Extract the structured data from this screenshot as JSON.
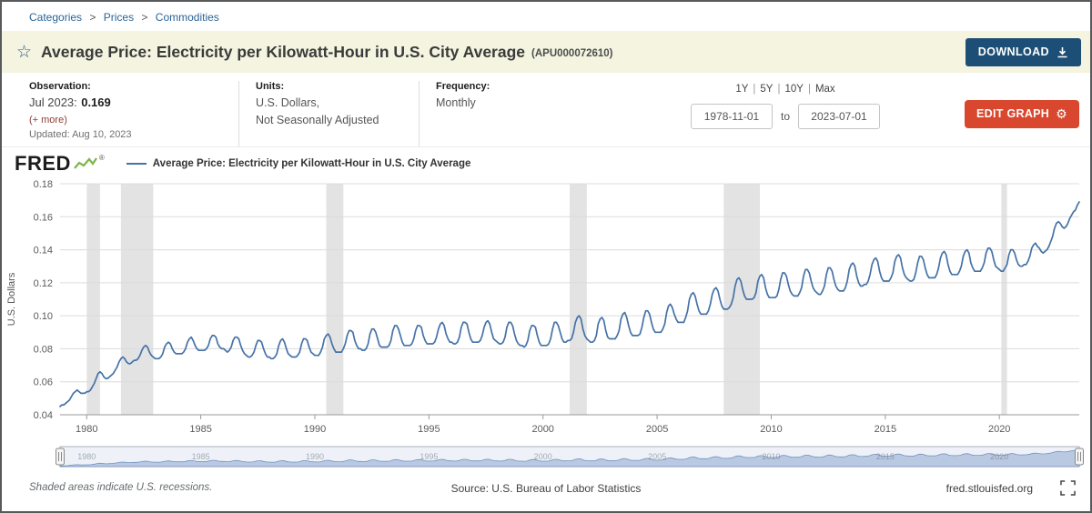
{
  "breadcrumb": {
    "items": [
      "Categories",
      "Prices",
      "Commodities"
    ],
    "separator": ">"
  },
  "title_bar": {
    "title": "Average Price: Electricity per Kilowatt-Hour in U.S. City Average",
    "series_id": "(APU000072610)",
    "download_label": "DOWNLOAD",
    "registered_mark": "®"
  },
  "icons": {
    "star": "☆",
    "gear": "⚙"
  },
  "info": {
    "observation": {
      "label": "Observation:",
      "date": "Jul 2023:",
      "value": "0.169",
      "more_link": "(+ more)",
      "updated": "Updated: Aug 10, 2023"
    },
    "units": {
      "label": "Units:",
      "line1": "U.S. Dollars,",
      "line2": "Not Seasonally Adjusted"
    },
    "frequency": {
      "label": "Frequency:",
      "value": "Monthly"
    },
    "range": {
      "presets": [
        "1Y",
        "5Y",
        "10Y",
        "Max"
      ],
      "preset_separator": "|",
      "start_date": "1978-11-01",
      "to_label": "to",
      "end_date": "2023-07-01",
      "edit_graph_label": "EDIT GRAPH"
    }
  },
  "chart_header": {
    "logo_text": "FRED",
    "legend_label": "Average Price: Electricity per Kilowatt-Hour in U.S. City Average"
  },
  "footer": {
    "recession_note": "Shaded areas indicate U.S. recessions.",
    "source": "Source: U.S. Bureau of Labor Statistics",
    "site": "fred.stlouisfed.org"
  },
  "colors": {
    "line": "#4572a7",
    "recession_band": "#e3e3e3",
    "gridline": "#dcdcdc",
    "axis_label": "#5a5a5a",
    "navigator_fill": "#b9c9e2",
    "navigator_stroke": "#7391bd",
    "download_button_bg": "#1d4f76",
    "edit_button_bg": "#d9472e",
    "title_bar_bg": "#f4f4e1"
  },
  "chart_data": {
    "type": "line",
    "title": "Average Price: Electricity per Kilowatt-Hour in U.S. City Average",
    "ylabel": "U.S. Dollars",
    "ylim": [
      0.04,
      0.18
    ],
    "yticks": [
      0.04,
      0.06,
      0.08,
      0.1,
      0.12,
      0.14,
      0.16,
      0.18
    ],
    "xticks": [
      1980,
      1985,
      1990,
      1995,
      2000,
      2005,
      2010,
      2015,
      2020
    ],
    "x_start": {
      "year": 1978,
      "month": 11
    },
    "x_end": {
      "year": 2023,
      "month": 7
    },
    "frequency": "Monthly",
    "grid": "horizontal-only",
    "legend_position": "top-left",
    "recessions": [
      [
        1980.0,
        1980.583
      ],
      [
        1981.5,
        1982.917
      ],
      [
        1990.5,
        1991.25
      ],
      [
        2001.167,
        2001.917
      ],
      [
        2007.917,
        2009.5
      ],
      [
        2020.083,
        2020.333
      ]
    ],
    "monthly_values": [
      0.045,
      0.046,
      0.046,
      0.047,
      0.048,
      0.049,
      0.051,
      0.053,
      0.054,
      0.055,
      0.054,
      0.053,
      0.053,
      0.053,
      0.054,
      0.054,
      0.055,
      0.057,
      0.059,
      0.062,
      0.065,
      0.066,
      0.065,
      0.063,
      0.062,
      0.062,
      0.063,
      0.064,
      0.065,
      0.067,
      0.069,
      0.072,
      0.074,
      0.075,
      0.074,
      0.072,
      0.071,
      0.071,
      0.072,
      0.073,
      0.073,
      0.074,
      0.076,
      0.079,
      0.081,
      0.082,
      0.081,
      0.078,
      0.076,
      0.075,
      0.074,
      0.074,
      0.074,
      0.075,
      0.077,
      0.081,
      0.083,
      0.084,
      0.083,
      0.08,
      0.078,
      0.077,
      0.077,
      0.077,
      0.077,
      0.078,
      0.08,
      0.084,
      0.086,
      0.087,
      0.085,
      0.082,
      0.08,
      0.079,
      0.079,
      0.079,
      0.079,
      0.08,
      0.082,
      0.086,
      0.088,
      0.088,
      0.087,
      0.083,
      0.081,
      0.08,
      0.08,
      0.079,
      0.078,
      0.079,
      0.081,
      0.085,
      0.087,
      0.087,
      0.086,
      0.082,
      0.079,
      0.077,
      0.076,
      0.075,
      0.075,
      0.076,
      0.078,
      0.082,
      0.085,
      0.085,
      0.084,
      0.08,
      0.077,
      0.075,
      0.075,
      0.074,
      0.074,
      0.075,
      0.077,
      0.082,
      0.085,
      0.086,
      0.084,
      0.08,
      0.077,
      0.076,
      0.075,
      0.075,
      0.075,
      0.076,
      0.078,
      0.083,
      0.086,
      0.086,
      0.085,
      0.081,
      0.078,
      0.077,
      0.076,
      0.076,
      0.076,
      0.078,
      0.081,
      0.086,
      0.088,
      0.089,
      0.087,
      0.083,
      0.08,
      0.078,
      0.078,
      0.078,
      0.078,
      0.08,
      0.083,
      0.088,
      0.091,
      0.091,
      0.09,
      0.085,
      0.082,
      0.08,
      0.08,
      0.079,
      0.079,
      0.08,
      0.083,
      0.089,
      0.092,
      0.092,
      0.09,
      0.086,
      0.082,
      0.081,
      0.081,
      0.081,
      0.081,
      0.082,
      0.085,
      0.091,
      0.094,
      0.094,
      0.092,
      0.088,
      0.084,
      0.082,
      0.082,
      0.082,
      0.082,
      0.083,
      0.086,
      0.091,
      0.094,
      0.094,
      0.093,
      0.088,
      0.085,
      0.083,
      0.083,
      0.083,
      0.083,
      0.084,
      0.087,
      0.092,
      0.095,
      0.096,
      0.094,
      0.089,
      0.086,
      0.084,
      0.084,
      0.083,
      0.083,
      0.084,
      0.087,
      0.093,
      0.096,
      0.096,
      0.095,
      0.09,
      0.086,
      0.084,
      0.084,
      0.084,
      0.084,
      0.085,
      0.088,
      0.093,
      0.096,
      0.097,
      0.095,
      0.09,
      0.086,
      0.085,
      0.084,
      0.083,
      0.083,
      0.084,
      0.087,
      0.093,
      0.096,
      0.096,
      0.094,
      0.089,
      0.085,
      0.083,
      0.082,
      0.082,
      0.081,
      0.082,
      0.085,
      0.091,
      0.094,
      0.094,
      0.093,
      0.088,
      0.084,
      0.082,
      0.082,
      0.082,
      0.082,
      0.083,
      0.086,
      0.092,
      0.096,
      0.096,
      0.094,
      0.09,
      0.086,
      0.084,
      0.084,
      0.085,
      0.085,
      0.086,
      0.09,
      0.096,
      0.099,
      0.1,
      0.098,
      0.092,
      0.088,
      0.086,
      0.085,
      0.084,
      0.084,
      0.085,
      0.088,
      0.095,
      0.098,
      0.099,
      0.097,
      0.091,
      0.087,
      0.086,
      0.086,
      0.086,
      0.086,
      0.088,
      0.091,
      0.098,
      0.101,
      0.102,
      0.099,
      0.094,
      0.09,
      0.088,
      0.088,
      0.088,
      0.088,
      0.089,
      0.093,
      0.099,
      0.103,
      0.103,
      0.101,
      0.096,
      0.092,
      0.09,
      0.09,
      0.09,
      0.09,
      0.092,
      0.095,
      0.102,
      0.106,
      0.107,
      0.105,
      0.101,
      0.098,
      0.096,
      0.096,
      0.096,
      0.096,
      0.099,
      0.103,
      0.11,
      0.113,
      0.114,
      0.112,
      0.107,
      0.103,
      0.101,
      0.101,
      0.101,
      0.101,
      0.103,
      0.107,
      0.113,
      0.116,
      0.117,
      0.115,
      0.11,
      0.106,
      0.104,
      0.104,
      0.104,
      0.105,
      0.107,
      0.111,
      0.118,
      0.122,
      0.123,
      0.121,
      0.116,
      0.112,
      0.11,
      0.11,
      0.11,
      0.11,
      0.111,
      0.114,
      0.121,
      0.124,
      0.125,
      0.123,
      0.117,
      0.113,
      0.111,
      0.111,
      0.111,
      0.111,
      0.112,
      0.116,
      0.122,
      0.126,
      0.126,
      0.124,
      0.119,
      0.115,
      0.113,
      0.112,
      0.112,
      0.112,
      0.114,
      0.117,
      0.124,
      0.128,
      0.128,
      0.126,
      0.121,
      0.117,
      0.115,
      0.114,
      0.113,
      0.113,
      0.115,
      0.118,
      0.125,
      0.129,
      0.129,
      0.127,
      0.122,
      0.118,
      0.116,
      0.115,
      0.115,
      0.115,
      0.117,
      0.121,
      0.128,
      0.131,
      0.132,
      0.13,
      0.124,
      0.12,
      0.118,
      0.118,
      0.119,
      0.119,
      0.121,
      0.125,
      0.131,
      0.134,
      0.135,
      0.133,
      0.127,
      0.123,
      0.121,
      0.121,
      0.121,
      0.121,
      0.123,
      0.126,
      0.133,
      0.136,
      0.137,
      0.135,
      0.129,
      0.125,
      0.123,
      0.122,
      0.121,
      0.121,
      0.122,
      0.126,
      0.132,
      0.136,
      0.136,
      0.134,
      0.129,
      0.125,
      0.123,
      0.123,
      0.123,
      0.123,
      0.125,
      0.129,
      0.135,
      0.138,
      0.139,
      0.137,
      0.131,
      0.127,
      0.125,
      0.125,
      0.125,
      0.125,
      0.127,
      0.13,
      0.136,
      0.139,
      0.14,
      0.138,
      0.132,
      0.129,
      0.127,
      0.127,
      0.127,
      0.127,
      0.129,
      0.132,
      0.138,
      0.141,
      0.141,
      0.139,
      0.134,
      0.13,
      0.129,
      0.128,
      0.127,
      0.127,
      0.129,
      0.131,
      0.137,
      0.14,
      0.14,
      0.138,
      0.134,
      0.131,
      0.13,
      0.13,
      0.131,
      0.131,
      0.133,
      0.136,
      0.141,
      0.143,
      0.144,
      0.142,
      0.141,
      0.139,
      0.138,
      0.139,
      0.14,
      0.142,
      0.145,
      0.148,
      0.153,
      0.156,
      0.157,
      0.156,
      0.154,
      0.153,
      0.154,
      0.156,
      0.159,
      0.161,
      0.163,
      0.164,
      0.167,
      0.169
    ]
  }
}
